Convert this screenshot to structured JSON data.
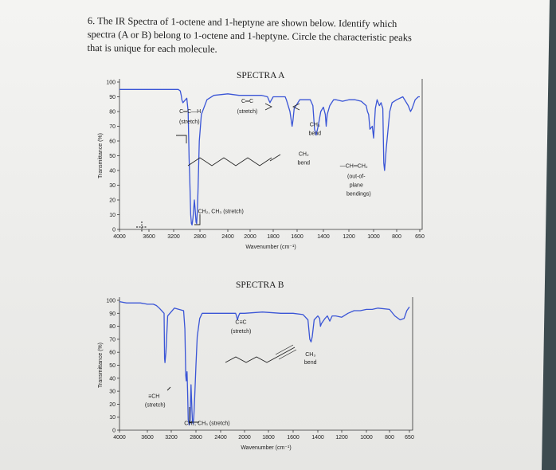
{
  "question": {
    "lines": [
      "6. The IR Spectra of 1-octene and 1-heptyne are shown below. Identify which",
      "spectra (A or B) belong to 1-octene and 1-heptyne. Circle the characteristic peaks",
      "that is unique for each molecule."
    ]
  },
  "colors": {
    "trace": "#3a55d6",
    "text": "#1d1d1d",
    "background": "#ececea"
  },
  "chart_data": [
    {
      "type": "line",
      "title": "SPECTRA A",
      "xlabel": "Wavenumber (cm⁻¹)",
      "ylabel": "Transmittance (%)",
      "x_ticks": [
        "4000",
        "3600",
        "3200",
        "2800",
        "2400",
        "2000",
        "1800",
        "1600",
        "1400",
        "1200",
        "1000",
        "800",
        "650"
      ],
      "y_ticks": [
        "0",
        "10",
        "20",
        "30",
        "40",
        "50",
        "60",
        "70",
        "80",
        "90",
        "100"
      ],
      "ylim": [
        0,
        100
      ],
      "series": [
        {
          "x": [
            4000,
            3800,
            3600,
            3400,
            3250,
            3130,
            3100,
            3085,
            3075,
            3060,
            3040,
            3000,
            2980,
            2965,
            2955,
            2940,
            2930,
            2920,
            2905,
            2885,
            2870,
            2860,
            2850,
            2840,
            2830,
            2810,
            2780,
            2700,
            2600,
            2400,
            2200,
            2100,
            2050,
            2000,
            1900,
            1850,
            1828,
            1822,
            1800,
            1700,
            1690,
            1660,
            1642,
            1635,
            1625,
            1580,
            1500,
            1480,
            1467,
            1455,
            1440,
            1420,
            1400,
            1385,
            1378,
            1370,
            1350,
            1320,
            1300,
            1250,
            1200,
            1150,
            1100,
            1060,
            1050,
            1040,
            1030,
            1010,
            1000,
            994,
            985,
            970,
            960,
            950,
            935,
            920,
            912,
            905,
            890,
            860,
            840,
            800,
            760,
            725,
            710,
            700,
            680,
            660,
            650
          ],
          "y": [
            95,
            95,
            95,
            95,
            95,
            95,
            94,
            91,
            88,
            86,
            87,
            89,
            80,
            48,
            35,
            10,
            4,
            3,
            8,
            20,
            12,
            5,
            4,
            12,
            25,
            60,
            78,
            88,
            91,
            92,
            91,
            91,
            91,
            91,
            91,
            90,
            86,
            87,
            90,
            90,
            88,
            80,
            70,
            74,
            82,
            88,
            88,
            84,
            68,
            64,
            70,
            80,
            83,
            78,
            70,
            78,
            84,
            88,
            88,
            87,
            88,
            88,
            87,
            84,
            80,
            78,
            68,
            70,
            62,
            70,
            82,
            88,
            86,
            84,
            86,
            82,
            45,
            40,
            55,
            80,
            86,
            88,
            90,
            84,
            80,
            82,
            88,
            90,
            90
          ]
        }
      ],
      "annotations": [
        {
          "text": "C═C—H",
          "x": 2950,
          "y": 79
        },
        {
          "text": "(stretch)",
          "x": 2960,
          "y": 72
        },
        {
          "text": "C═C",
          "x": 2050,
          "y": 86
        },
        {
          "text": "(stretch)",
          "x": 2050,
          "y": 79
        },
        {
          "text": "CH₃",
          "x": 1465,
          "y": 70
        },
        {
          "text": "bend",
          "x": 1465,
          "y": 64
        },
        {
          "text": "CH₂",
          "x": 1550,
          "y": 50
        },
        {
          "text": "bend",
          "x": 1550,
          "y": 44
        },
        {
          "text": "—CH═CH₂",
          "x": 1160,
          "y": 42
        },
        {
          "text": "(out-of-",
          "x": 1140,
          "y": 35
        },
        {
          "text": "plane",
          "x": 1140,
          "y": 29
        },
        {
          "text": "bendings)",
          "x": 1120,
          "y": 23
        },
        {
          "text": "CH₂, CH₃ (stretch)",
          "x": 2500,
          "y": 11
        }
      ]
    },
    {
      "type": "line",
      "title": "SPECTRA B",
      "xlabel": "Wavenumber (cm⁻¹)",
      "ylabel": "Transmittance (%)",
      "x_ticks": [
        "4000",
        "3600",
        "3200",
        "2800",
        "2400",
        "2000",
        "1800",
        "1600",
        "1400",
        "1200",
        "1000",
        "800",
        "650"
      ],
      "y_ticks": [
        "0",
        "10",
        "20",
        "30",
        "40",
        "50",
        "60",
        "70",
        "80",
        "90",
        "100"
      ],
      "ylim": [
        0,
        100
      ],
      "series": [
        {
          "x": [
            4000,
            3900,
            3800,
            3700,
            3600,
            3500,
            3450,
            3400,
            3380,
            3320,
            3312,
            3305,
            3290,
            3260,
            3150,
            3000,
            2980,
            2965,
            2957,
            2945,
            2935,
            2925,
            2910,
            2895,
            2880,
            2872,
            2865,
            2855,
            2845,
            2835,
            2820,
            2800,
            2780,
            2740,
            2700,
            2600,
            2400,
            2200,
            2150,
            2135,
            2118,
            2100,
            2080,
            2000,
            1850,
            1700,
            1600,
            1520,
            1480,
            1465,
            1455,
            1445,
            1430,
            1400,
            1385,
            1378,
            1370,
            1340,
            1320,
            1300,
            1280,
            1250,
            1200,
            1150,
            1100,
            1050,
            1000,
            950,
            900,
            800,
            760,
            720,
            690,
            670,
            650
          ],
          "y": [
            99,
            98,
            98,
            98,
            97,
            97,
            96,
            94,
            93,
            90,
            55,
            52,
            60,
            88,
            94,
            92,
            78,
            42,
            38,
            45,
            30,
            8,
            4,
            6,
            35,
            25,
            15,
            6,
            5,
            10,
            25,
            50,
            72,
            86,
            90,
            90,
            90,
            90,
            90,
            88,
            85,
            88,
            90,
            90,
            91,
            90,
            90,
            89,
            85,
            70,
            68,
            72,
            85,
            88,
            86,
            80,
            82,
            86,
            88,
            84,
            88,
            88,
            87,
            90,
            92,
            92,
            93,
            93,
            94,
            93,
            88,
            85,
            86,
            92,
            95
          ]
        }
      ],
      "annotations": [
        {
          "text": "C≡C",
          "x": 2060,
          "y": 82
        },
        {
          "text": "(stretch)",
          "x": 2060,
          "y": 75
        },
        {
          "text": "CH₃",
          "x": 1460,
          "y": 57
        },
        {
          "text": "bend",
          "x": 1460,
          "y": 51
        },
        {
          "text": "≡CH",
          "x": 3490,
          "y": 25
        },
        {
          "text": "(stretch)",
          "x": 3470,
          "y": 18
        },
        {
          "text": "CH₂, CH₃ (stretch)",
          "x": 2620,
          "y": 4
        }
      ]
    }
  ]
}
